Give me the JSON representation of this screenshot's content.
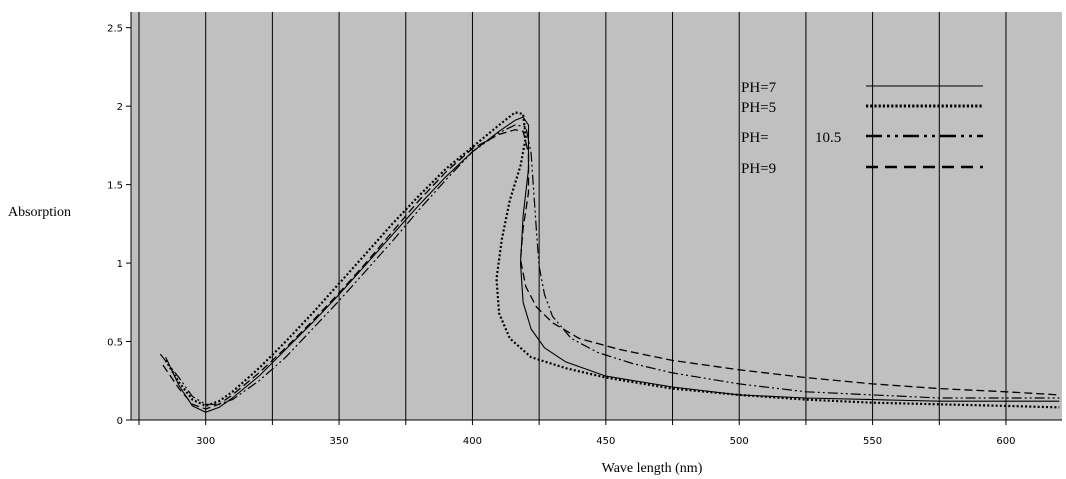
{
  "chart_data": {
    "type": "line",
    "title": "",
    "xlabel": "Wave length (nm)",
    "ylabel": "Absorption",
    "xlim": [
      272,
      621
    ],
    "ylim": [
      0,
      2.6
    ],
    "xticks": [
      "300",
      "350",
      "400",
      "450",
      "500",
      "550",
      "600"
    ],
    "yticks": [
      "0",
      "0.5",
      "1",
      "1.5",
      "2",
      "2.5"
    ],
    "grid": "vertical",
    "legend_position": "top-right",
    "plot_background": "#c0c0c0",
    "series": [
      {
        "name": "PH=7",
        "style": "solid",
        "points": [
          [
            285,
            0.4
          ],
          [
            290,
            0.22
          ],
          [
            295,
            0.09
          ],
          [
            300,
            0.05
          ],
          [
            305,
            0.08
          ],
          [
            310,
            0.14
          ],
          [
            320,
            0.28
          ],
          [
            330,
            0.45
          ],
          [
            340,
            0.62
          ],
          [
            350,
            0.8
          ],
          [
            360,
            0.99
          ],
          [
            370,
            1.18
          ],
          [
            380,
            1.37
          ],
          [
            390,
            1.55
          ],
          [
            400,
            1.71
          ],
          [
            410,
            1.84
          ],
          [
            416,
            1.91
          ],
          [
            419,
            1.93
          ],
          [
            421,
            1.88
          ],
          [
            421,
            1.6
          ],
          [
            419,
            1.3
          ],
          [
            418,
            1.0
          ],
          [
            419,
            0.75
          ],
          [
            422,
            0.58
          ],
          [
            427,
            0.46
          ],
          [
            435,
            0.37
          ],
          [
            450,
            0.28
          ],
          [
            475,
            0.21
          ],
          [
            500,
            0.16
          ],
          [
            525,
            0.14
          ],
          [
            550,
            0.13
          ],
          [
            575,
            0.12
          ],
          [
            600,
            0.12
          ],
          [
            620,
            0.12
          ]
        ]
      },
      {
        "name": "PH=5",
        "style": "dotted",
        "points": [
          [
            285,
            0.38
          ],
          [
            290,
            0.24
          ],
          [
            295,
            0.13
          ],
          [
            300,
            0.09
          ],
          [
            305,
            0.12
          ],
          [
            310,
            0.18
          ],
          [
            320,
            0.33
          ],
          [
            330,
            0.5
          ],
          [
            340,
            0.68
          ],
          [
            350,
            0.87
          ],
          [
            360,
            1.06
          ],
          [
            370,
            1.25
          ],
          [
            380,
            1.43
          ],
          [
            390,
            1.6
          ],
          [
            400,
            1.74
          ],
          [
            410,
            1.88
          ],
          [
            416,
            1.96
          ],
          [
            419,
            1.95
          ],
          [
            420,
            1.8
          ],
          [
            418,
            1.62
          ],
          [
            414,
            1.4
          ],
          [
            411,
            1.15
          ],
          [
            409,
            0.9
          ],
          [
            410,
            0.68
          ],
          [
            414,
            0.52
          ],
          [
            422,
            0.4
          ],
          [
            435,
            0.33
          ],
          [
            450,
            0.27
          ],
          [
            475,
            0.2
          ],
          [
            500,
            0.16
          ],
          [
            525,
            0.13
          ],
          [
            550,
            0.11
          ],
          [
            575,
            0.1
          ],
          [
            600,
            0.09
          ],
          [
            620,
            0.08
          ]
        ]
      },
      {
        "name": "PH=",
        "name_suffix": "10.5",
        "style": "dash-dot",
        "points": [
          [
            283,
            0.42
          ],
          [
            290,
            0.27
          ],
          [
            295,
            0.15
          ],
          [
            300,
            0.1
          ],
          [
            305,
            0.1
          ],
          [
            310,
            0.13
          ],
          [
            320,
            0.25
          ],
          [
            330,
            0.4
          ],
          [
            340,
            0.58
          ],
          [
            350,
            0.76
          ],
          [
            360,
            0.95
          ],
          [
            370,
            1.14
          ],
          [
            380,
            1.34
          ],
          [
            390,
            1.53
          ],
          [
            400,
            1.71
          ],
          [
            410,
            1.83
          ],
          [
            416,
            1.88
          ],
          [
            420,
            1.87
          ],
          [
            422,
            1.7
          ],
          [
            423,
            1.45
          ],
          [
            424,
            1.2
          ],
          [
            425,
            0.98
          ],
          [
            427,
            0.8
          ],
          [
            430,
            0.66
          ],
          [
            437,
            0.52
          ],
          [
            447,
            0.43
          ],
          [
            460,
            0.36
          ],
          [
            475,
            0.3
          ],
          [
            500,
            0.23
          ],
          [
            525,
            0.18
          ],
          [
            550,
            0.16
          ],
          [
            575,
            0.14
          ],
          [
            600,
            0.14
          ],
          [
            620,
            0.14
          ]
        ]
      },
      {
        "name": "PH=9",
        "style": "dashed",
        "points": [
          [
            284,
            0.35
          ],
          [
            290,
            0.2
          ],
          [
            295,
            0.1
          ],
          [
            300,
            0.07
          ],
          [
            305,
            0.1
          ],
          [
            310,
            0.16
          ],
          [
            320,
            0.3
          ],
          [
            330,
            0.46
          ],
          [
            340,
            0.63
          ],
          [
            350,
            0.81
          ],
          [
            360,
            1.0
          ],
          [
            370,
            1.2
          ],
          [
            380,
            1.4
          ],
          [
            390,
            1.58
          ],
          [
            400,
            1.73
          ],
          [
            410,
            1.82
          ],
          [
            416,
            1.85
          ],
          [
            419,
            1.84
          ],
          [
            421,
            1.7
          ],
          [
            421,
            1.45
          ],
          [
            419,
            1.22
          ],
          [
            418,
            1.02
          ],
          [
            420,
            0.85
          ],
          [
            424,
            0.72
          ],
          [
            430,
            0.62
          ],
          [
            440,
            0.52
          ],
          [
            455,
            0.45
          ],
          [
            475,
            0.38
          ],
          [
            500,
            0.32
          ],
          [
            525,
            0.27
          ],
          [
            550,
            0.23
          ],
          [
            575,
            0.2
          ],
          [
            600,
            0.18
          ],
          [
            620,
            0.16
          ]
        ]
      }
    ]
  }
}
